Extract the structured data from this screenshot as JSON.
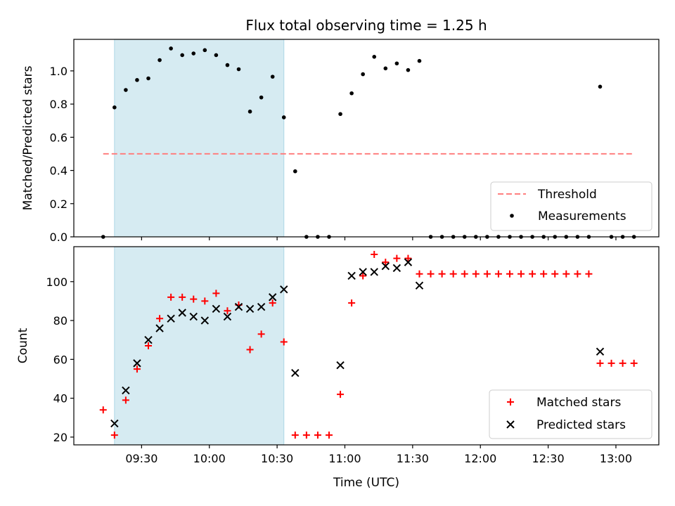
{
  "figure": {
    "title": "Flux total observing time = 1.25 h",
    "xlabel": "Time (UTC)",
    "x_ticks": [
      "09:30",
      "10:00",
      "10:30",
      "11:00",
      "11:30",
      "12:00",
      "12:30",
      "13:00"
    ],
    "x_tick_minutes": [
      570,
      600,
      630,
      660,
      690,
      720,
      750,
      780
    ]
  },
  "colors": {
    "shade": "#add8e6",
    "threshold": "#ff7f7f",
    "measurements": "#000000",
    "matched": "#ff0000",
    "predicted": "#000000"
  },
  "chart_data": [
    {
      "type": "scatter",
      "title": "Flux total observing time = 1.25 h",
      "xlabel": "",
      "ylabel": "Matched/Predicted stars",
      "xlim": [
        "09:00",
        "13:19"
      ],
      "ylim": [
        0,
        1.19
      ],
      "y_ticks": [
        "0.0",
        "0.2",
        "0.4",
        "0.6",
        "0.8",
        "1.0"
      ],
      "y_tick_values": [
        0,
        0.2,
        0.4,
        0.6,
        0.8,
        1.0
      ],
      "shaded_span": [
        "09:18",
        "10:33"
      ],
      "threshold": {
        "name": "Threshold",
        "y": 0.5,
        "x_start": "09:13",
        "x_end": "13:08"
      },
      "legend": "lower right",
      "series": [
        {
          "name": "Measurements",
          "x": [
            "09:13",
            "09:18",
            "09:23",
            "09:28",
            "09:33",
            "09:38",
            "09:43",
            "09:48",
            "09:53",
            "09:58",
            "10:03",
            "10:08",
            "10:13",
            "10:18",
            "10:23",
            "10:28",
            "10:33",
            "10:38",
            "10:43",
            "10:48",
            "10:53",
            "10:58",
            "11:03",
            "11:08",
            "11:13",
            "11:18",
            "11:23",
            "11:28",
            "11:33",
            "11:38",
            "11:43",
            "11:48",
            "11:53",
            "11:58",
            "12:03",
            "12:08",
            "12:13",
            "12:18",
            "12:23",
            "12:28",
            "12:33",
            "12:38",
            "12:43",
            "12:48",
            "12:53",
            "12:58",
            "13:03",
            "13:08"
          ],
          "y": [
            0,
            0.78,
            0.885,
            0.945,
            0.955,
            1.065,
            1.135,
            1.095,
            1.105,
            1.125,
            1.095,
            1.035,
            1.01,
            0.755,
            0.84,
            0.965,
            0.72,
            0.395,
            0,
            0,
            0,
            0.74,
            0.865,
            0.98,
            1.085,
            1.015,
            1.045,
            1.005,
            1.06,
            0,
            0,
            0,
            0,
            0,
            0,
            0,
            0,
            0,
            0,
            0,
            0,
            0,
            0,
            0,
            0.905,
            0,
            0,
            0
          ]
        }
      ]
    },
    {
      "type": "scatter",
      "xlabel": "Time (UTC)",
      "ylabel": "Count",
      "xlim": [
        "09:00",
        "13:19"
      ],
      "ylim": [
        16,
        118
      ],
      "y_ticks": [
        "20",
        "40",
        "60",
        "80",
        "100"
      ],
      "y_tick_values": [
        20,
        40,
        60,
        80,
        100
      ],
      "shaded_span": [
        "09:18",
        "10:33"
      ],
      "legend": "lower right",
      "series": [
        {
          "name": "Matched stars",
          "marker": "+",
          "x": [
            "09:13",
            "09:18",
            "09:23",
            "09:28",
            "09:33",
            "09:38",
            "09:43",
            "09:48",
            "09:53",
            "09:58",
            "10:03",
            "10:08",
            "10:13",
            "10:18",
            "10:23",
            "10:28",
            "10:33",
            "10:38",
            "10:43",
            "10:48",
            "10:53",
            "10:58",
            "11:03",
            "11:08",
            "11:13",
            "11:18",
            "11:23",
            "11:28",
            "11:33",
            "11:38",
            "11:43",
            "11:48",
            "11:53",
            "11:58",
            "12:03",
            "12:08",
            "12:13",
            "12:18",
            "12:23",
            "12:28",
            "12:33",
            "12:38",
            "12:43",
            "12:48",
            "12:53",
            "12:58",
            "13:03",
            "13:08"
          ],
          "y": [
            34,
            21,
            39,
            55,
            67,
            81,
            92,
            92,
            91,
            90,
            94,
            85,
            88,
            65,
            73,
            89,
            69,
            21,
            21,
            21,
            21,
            42,
            89,
            103,
            114,
            110,
            112,
            112,
            104,
            104,
            104,
            104,
            104,
            104,
            104,
            104,
            104,
            104,
            104,
            104,
            104,
            104,
            104,
            104,
            58,
            58,
            58,
            58
          ]
        },
        {
          "name": "Predicted stars",
          "marker": "x",
          "x": [
            "09:18",
            "09:23",
            "09:28",
            "09:33",
            "09:38",
            "09:43",
            "09:48",
            "09:53",
            "09:58",
            "10:03",
            "10:08",
            "10:13",
            "10:18",
            "10:23",
            "10:28",
            "10:33",
            "10:38",
            "10:58",
            "11:03",
            "11:08",
            "11:13",
            "11:18",
            "11:23",
            "11:28",
            "11:33",
            "12:53"
          ],
          "y": [
            27,
            44,
            58,
            70,
            76,
            81,
            84,
            82,
            80,
            86,
            82,
            87,
            86,
            87,
            92,
            96,
            53,
            57,
            103,
            105,
            105,
            108,
            107,
            110,
            98,
            64
          ]
        }
      ]
    }
  ]
}
